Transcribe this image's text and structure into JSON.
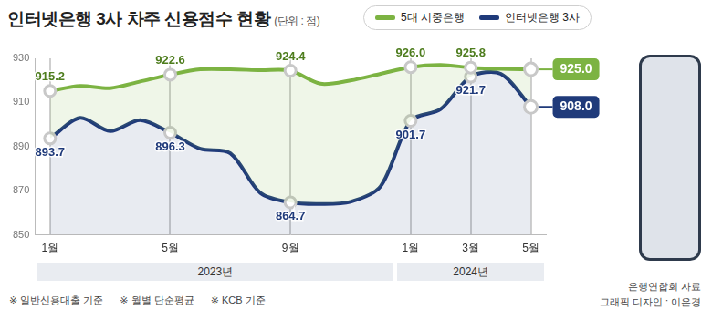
{
  "chart_data": {
    "type": "line",
    "title": "인터넷은행 3사 차주 신용점수 현황",
    "subtitle": "(단위 : 점)",
    "categories": [
      "1월",
      null,
      null,
      null,
      "5월",
      null,
      null,
      null,
      "9월",
      null,
      null,
      null,
      "1월",
      null,
      "3월",
      null,
      "5월"
    ],
    "x_groups": [
      {
        "label": "2023년",
        "count": 12
      },
      {
        "label": "2024년",
        "count": 5
      }
    ],
    "series": [
      {
        "name": "5대 시중은행",
        "color": "#7cb342",
        "values": [
          915.2,
          917.5,
          916.5,
          919.5,
          922.6,
          925.0,
          925.0,
          924.6,
          924.4,
          918.5,
          920.0,
          923.0,
          926.0,
          927.0,
          925.8,
          925.2,
          925.0
        ],
        "value_labels": [
          "915.2",
          null,
          null,
          null,
          "922.6",
          null,
          null,
          null,
          "924.4",
          null,
          null,
          null,
          "926.0",
          null,
          "925.8",
          null,
          "925.0"
        ]
      },
      {
        "name": "인터넷은행 3사",
        "color": "#1f3a7a",
        "values": [
          893.7,
          903.0,
          897.0,
          902.0,
          896.3,
          889.0,
          887.0,
          869.0,
          864.7,
          864.0,
          865.0,
          872.0,
          901.7,
          907.0,
          921.7,
          923.0,
          908.0
        ],
        "value_labels": [
          "893.7",
          null,
          null,
          null,
          "896.3",
          null,
          null,
          null,
          "864.7",
          null,
          null,
          null,
          "901.7",
          null,
          "921.7",
          null,
          "908.0"
        ]
      }
    ],
    "ylim": [
      850,
      930
    ],
    "yticks": [
      850,
      870,
      890,
      910,
      930
    ],
    "grid": "x",
    "legend": "top right",
    "data_labels": true,
    "marker": "circle",
    "notes": [
      "※ 일반신용대출 기준",
      "※ 월별 단순평균",
      "※ KCB 기준"
    ],
    "source": "은행연합회 자료",
    "credit": "그래픽 디자인 : 이은경"
  }
}
